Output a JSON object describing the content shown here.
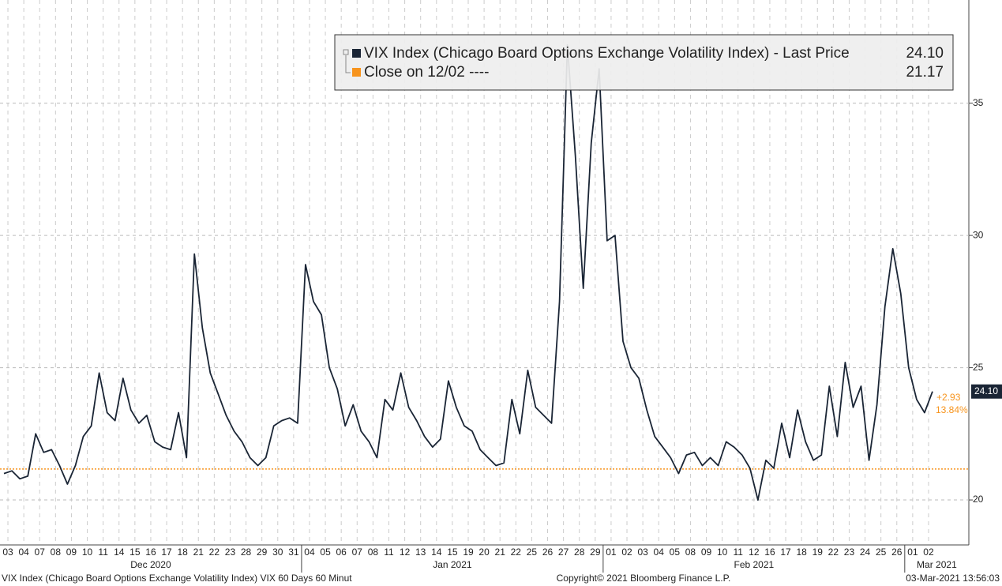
{
  "chart_data": {
    "type": "line",
    "legend_value_label": "24.10",
    "series": [
      {
        "name": "VIX Index (Chicago Board Options Exchange Volatility Index) - Last Price",
        "color": "#1a2535",
        "values": [
          21.0,
          21.1,
          20.8,
          20.9,
          22.5,
          21.8,
          21.9,
          21.3,
          20.6,
          21.3,
          22.4,
          22.8,
          24.8,
          23.3,
          23.0,
          24.6,
          23.4,
          22.9,
          23.2,
          22.2,
          22.0,
          21.9,
          23.3,
          21.6,
          29.3,
          26.5,
          24.8,
          24.0,
          23.2,
          22.6,
          22.2,
          21.6,
          21.3,
          21.6,
          22.8,
          23.0,
          23.1,
          22.9,
          28.9,
          27.5,
          27.0,
          25.0,
          24.2,
          22.8,
          23.6,
          22.6,
          22.2,
          21.6,
          23.8,
          23.4,
          24.8,
          23.5,
          23.0,
          22.4,
          22.0,
          22.3,
          24.5,
          23.5,
          22.8,
          22.6,
          21.9,
          21.6,
          21.3,
          21.4,
          23.8,
          22.5,
          24.9,
          23.5,
          23.2,
          22.9,
          27.5,
          37.2,
          33.0,
          28.0,
          33.5,
          36.3,
          29.8,
          30.0,
          26.0,
          25.0,
          24.6,
          23.4,
          22.4,
          22.0,
          21.6,
          21.0,
          21.7,
          21.8,
          21.3,
          21.6,
          21.3,
          22.2,
          22.0,
          21.7,
          21.2,
          20.0,
          21.5,
          21.2,
          22.9,
          21.6,
          23.4,
          22.2,
          21.5,
          21.7,
          24.3,
          22.4,
          25.2,
          23.5,
          24.3,
          21.5,
          23.6,
          27.3,
          29.5,
          27.8,
          25.0,
          23.8,
          23.3,
          24.1
        ]
      }
    ],
    "categories": [
      "03",
      null,
      "04",
      null,
      "07",
      null,
      "08",
      null,
      "09",
      null,
      "10",
      null,
      "11",
      null,
      "14",
      null,
      "15",
      null,
      "16",
      null,
      "17",
      null,
      "18",
      null,
      "21",
      null,
      "22",
      null,
      "23",
      null,
      "28",
      null,
      "29",
      null,
      "30",
      null,
      "31",
      null,
      "04",
      null,
      "05",
      null,
      "06",
      null,
      "07",
      null,
      "08",
      null,
      "11",
      null,
      "12",
      null,
      "13",
      null,
      "14",
      null,
      "15",
      null,
      "19",
      null,
      "20",
      null,
      "21",
      null,
      "22",
      null,
      "25",
      null,
      "26",
      null,
      "27",
      null,
      "28",
      null,
      "29",
      null,
      "01",
      null,
      "02",
      null,
      "03",
      null,
      "04",
      null,
      "05",
      null,
      "08",
      null,
      "09",
      null,
      "10",
      null,
      "11",
      null,
      "12",
      null,
      "16",
      null,
      "17",
      null,
      "18",
      null,
      "19",
      null,
      "22",
      null,
      "23",
      null,
      "24",
      null,
      "25",
      null,
      "26",
      null,
      "01",
      null,
      "02",
      null
    ],
    "months": [
      "Dec 2020",
      "Jan 2021",
      "Feb 2021",
      "Mar 2021"
    ],
    "reference": {
      "name": "Close on 12/02 ----",
      "value": 21.17,
      "color": "#f7941d"
    },
    "last_price": {
      "value": 24.1,
      "label": "24.10"
    },
    "change": "+2.93",
    "change_pct": "13.84%",
    "ylim": [
      18.3,
      38.9
    ],
    "yticks": [
      20,
      25,
      30,
      35
    ],
    "grid": true,
    "footer_left": "VIX Index (Chicago Board Options Exchange Volatility Index) VIX 60 Days 60 Minut",
    "footer_center": "Copyright© 2021 Bloomberg Finance L.P.",
    "footer_right": "03-Mar-2021 13:56:03"
  }
}
